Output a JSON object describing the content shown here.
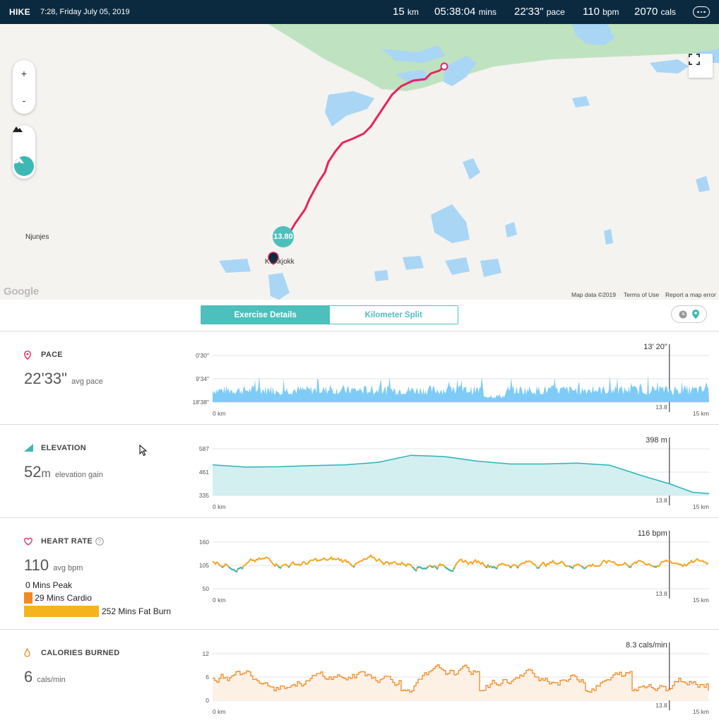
{
  "header": {
    "activity": "HIKE",
    "datetime": "7:28, Friday July 05, 2019",
    "distance_value": "15",
    "distance_unit": "km",
    "duration_value": "05:38:04",
    "duration_unit": "mins",
    "pace_value": "22'33\"",
    "pace_unit": "pace",
    "hr_value": "110",
    "hr_unit": "bpm",
    "cals_value": "2070",
    "cals_unit": "cals"
  },
  "map": {
    "zoom_in": "+",
    "zoom_out": "-",
    "place_njunjes": "Njunjes",
    "place_kvikkjokk": "Kvikkjokk",
    "km_marker": "13.80",
    "google": "Google",
    "map_data": "Map data ©2019",
    "terms": "Terms of Use",
    "report": "Report a map error",
    "icons": {
      "terrain": "mountain-icon",
      "satellite": "hike-icon",
      "fullscreen": "fullscreen-icon"
    }
  },
  "tabs": {
    "details": "Exercise Details",
    "split": "Kilometer Split"
  },
  "sections": {
    "pace": {
      "title": "PACE",
      "value": "22'33\"",
      "unit": "avg pace",
      "callout": "13' 20\"",
      "y_ticks": [
        "0'30\"",
        "9'34\"",
        "18'38\""
      ]
    },
    "elevation": {
      "title": "ELEVATION",
      "value": "52",
      "value_unit": "m",
      "unit": "elevation gain",
      "callout": "398 m",
      "y_ticks": [
        "587",
        "461",
        "335"
      ]
    },
    "heart": {
      "title": "HEART RATE",
      "value": "110",
      "unit": "avg bpm",
      "callout": "116 bpm",
      "y_ticks": [
        "160",
        "105",
        "50"
      ],
      "zones": [
        {
          "label": "0 Mins Peak",
          "minutes": 0
        },
        {
          "label": "29 Mins Cardio",
          "minutes": 29
        },
        {
          "label": "252 Mins Fat Burn",
          "minutes": 252
        }
      ]
    },
    "calories": {
      "title": "CALORIES BURNED",
      "value": "6",
      "unit": "cals/min",
      "callout": "8.3 cals/min",
      "y_ticks": [
        "12",
        "6",
        "0"
      ]
    }
  },
  "x_axis": {
    "start": "0 km",
    "end": "15 km",
    "cursor": "13.8"
  },
  "colors": {
    "header_bg": "#0b2a40",
    "teal": "#4dbfbd",
    "route": "#e6245e",
    "pace": "#7ecbf7",
    "elevation_line": "#2bb3b8",
    "hr_orange": "#f5a623",
    "hr_dark": "#f08a24",
    "cal": "#f08a24"
  },
  "chart_data": [
    {
      "type": "area",
      "title": "PACE",
      "x_range": [
        0,
        15
      ],
      "xlabel": "km",
      "y_ticks": [
        "0'30\"",
        "9'34\"",
        "18'38\""
      ],
      "cursor": {
        "x": 13.8,
        "value": "13' 20\""
      }
    },
    {
      "type": "area",
      "title": "ELEVATION",
      "x_range": [
        0,
        15
      ],
      "ylim": [
        335,
        587
      ],
      "cursor": {
        "x": 13.8,
        "value": 398
      },
      "x": [
        0,
        1,
        2,
        3,
        4,
        5,
        6,
        7,
        8,
        9,
        10,
        11,
        12,
        13,
        13.8,
        14.5,
        15
      ],
      "y": [
        500,
        488,
        490,
        496,
        500,
        514,
        552,
        545,
        520,
        505,
        505,
        510,
        498,
        440,
        398,
        352,
        345
      ]
    },
    {
      "type": "line",
      "title": "HEART RATE",
      "x_range": [
        0,
        15
      ],
      "ylim": [
        50,
        160
      ],
      "cursor": {
        "x": 13.8,
        "value": 116
      }
    },
    {
      "type": "line",
      "title": "CALORIES BURNED",
      "x_range": [
        0,
        15
      ],
      "ylim": [
        0,
        12
      ],
      "cursor": {
        "x": 13.8,
        "value": 8.3
      }
    }
  ]
}
